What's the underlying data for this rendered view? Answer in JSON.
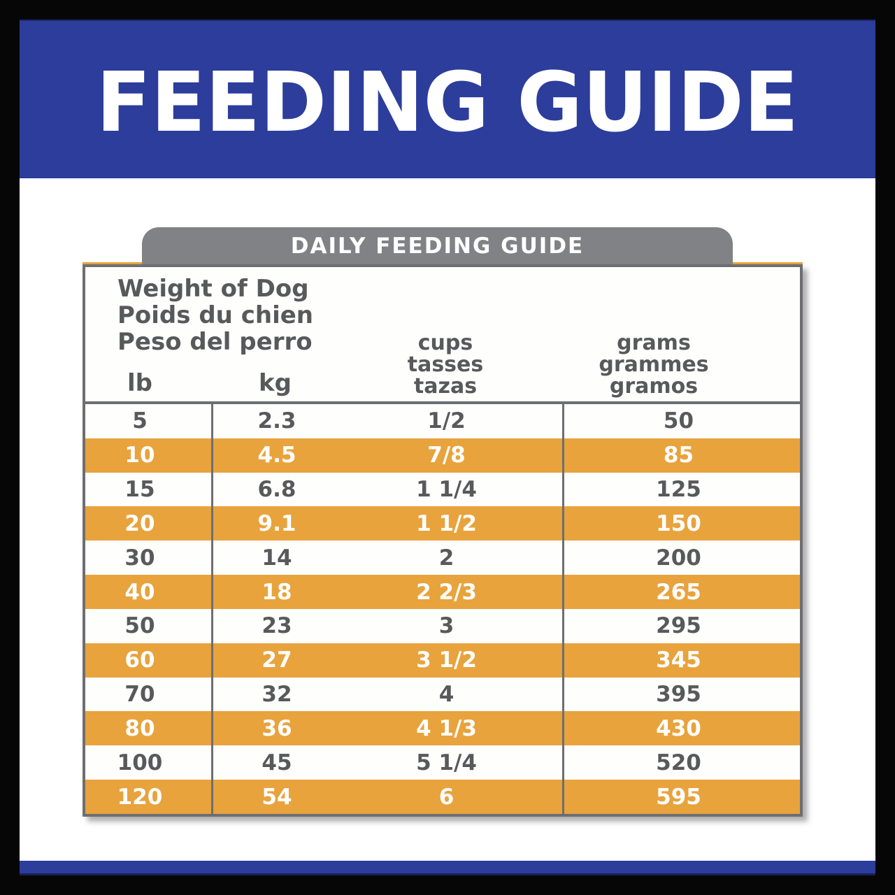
{
  "header": {
    "title": "FEEDING GUIDE"
  },
  "tab": {
    "title": "DAILY FEEDING GUIDE"
  },
  "table": {
    "header": {
      "weight_lines": [
        "Weight of Dog",
        "Poids du chien",
        "Peso del perro"
      ],
      "lb_label": "lb",
      "kg_label": "kg",
      "cups_lines": [
        "cups",
        "tasses",
        "tazas"
      ],
      "grams_lines": [
        "grams",
        "grammes",
        "gramos"
      ]
    },
    "rows": [
      {
        "lb": "5",
        "kg": "2.3",
        "cups": "1/2",
        "grams": "50",
        "highlight": false
      },
      {
        "lb": "10",
        "kg": "4.5",
        "cups": "7/8",
        "grams": "85",
        "highlight": true
      },
      {
        "lb": "15",
        "kg": "6.8",
        "cups": "1 1/4",
        "grams": "125",
        "highlight": false
      },
      {
        "lb": "20",
        "kg": "9.1",
        "cups": "1 1/2",
        "grams": "150",
        "highlight": true
      },
      {
        "lb": "30",
        "kg": "14",
        "cups": "2",
        "grams": "200",
        "highlight": false
      },
      {
        "lb": "40",
        "kg": "18",
        "cups": "2 2/3",
        "grams": "265",
        "highlight": true
      },
      {
        "lb": "50",
        "kg": "23",
        "cups": "3",
        "grams": "295",
        "highlight": false
      },
      {
        "lb": "60",
        "kg": "27",
        "cups": "3 1/2",
        "grams": "345",
        "highlight": true
      },
      {
        "lb": "70",
        "kg": "32",
        "cups": "4",
        "grams": "395",
        "highlight": false
      },
      {
        "lb": "80",
        "kg": "36",
        "cups": "4 1/3",
        "grams": "430",
        "highlight": true
      },
      {
        "lb": "100",
        "kg": "45",
        "cups": "5 1/4",
        "grams": "520",
        "highlight": false
      },
      {
        "lb": "120",
        "kg": "54",
        "cups": "6",
        "grams": "595",
        "highlight": true
      }
    ]
  },
  "colors": {
    "brand_blue": "#2c3d9c",
    "accent_orange": "#e8a33d",
    "tab_gray": "#818285",
    "border_gray": "#6d6e71",
    "text_gray": "#58595b",
    "frame_black": "#060606",
    "highlight_text": "#ffffff"
  },
  "chart_data": {
    "type": "table",
    "title": "FEEDING GUIDE",
    "subtitle": "DAILY FEEDING GUIDE",
    "columns": [
      "Weight of Dog — lb",
      "Weight of Dog — kg",
      "cups / tasses / tazas",
      "grams / grammes / gramos"
    ],
    "rows": [
      [
        "5",
        "2.3",
        "1/2",
        "50"
      ],
      [
        "10",
        "4.5",
        "7/8",
        "85"
      ],
      [
        "15",
        "6.8",
        "1 1/4",
        "125"
      ],
      [
        "20",
        "9.1",
        "1 1/2",
        "150"
      ],
      [
        "30",
        "14",
        "2",
        "200"
      ],
      [
        "40",
        "18",
        "2 2/3",
        "265"
      ],
      [
        "50",
        "23",
        "3",
        "295"
      ],
      [
        "60",
        "27",
        "3 1/2",
        "345"
      ],
      [
        "70",
        "32",
        "4",
        "395"
      ],
      [
        "80",
        "36",
        "4 1/3",
        "430"
      ],
      [
        "100",
        "45",
        "5 1/4",
        "520"
      ],
      [
        "120",
        "54",
        "6",
        "595"
      ]
    ],
    "highlighted_row_indices": [
      1,
      3,
      5,
      7,
      9,
      11
    ],
    "legend_position": "none",
    "grid": "partial-vertical-rules"
  }
}
